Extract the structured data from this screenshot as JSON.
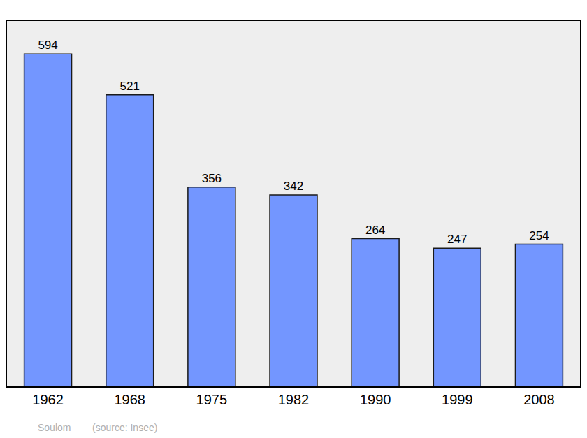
{
  "chart_data": {
    "type": "bar",
    "categories": [
      "1962",
      "1968",
      "1975",
      "1982",
      "1990",
      "1999",
      "2008"
    ],
    "values": [
      594,
      521,
      356,
      342,
      264,
      247,
      254
    ],
    "color": "#7396ff",
    "ylim": [
      0,
      653
    ],
    "data_labels": true,
    "tick_labels": "x",
    "grid": false,
    "annotations": [
      "Soulom",
      "(source: Insee)"
    ]
  }
}
